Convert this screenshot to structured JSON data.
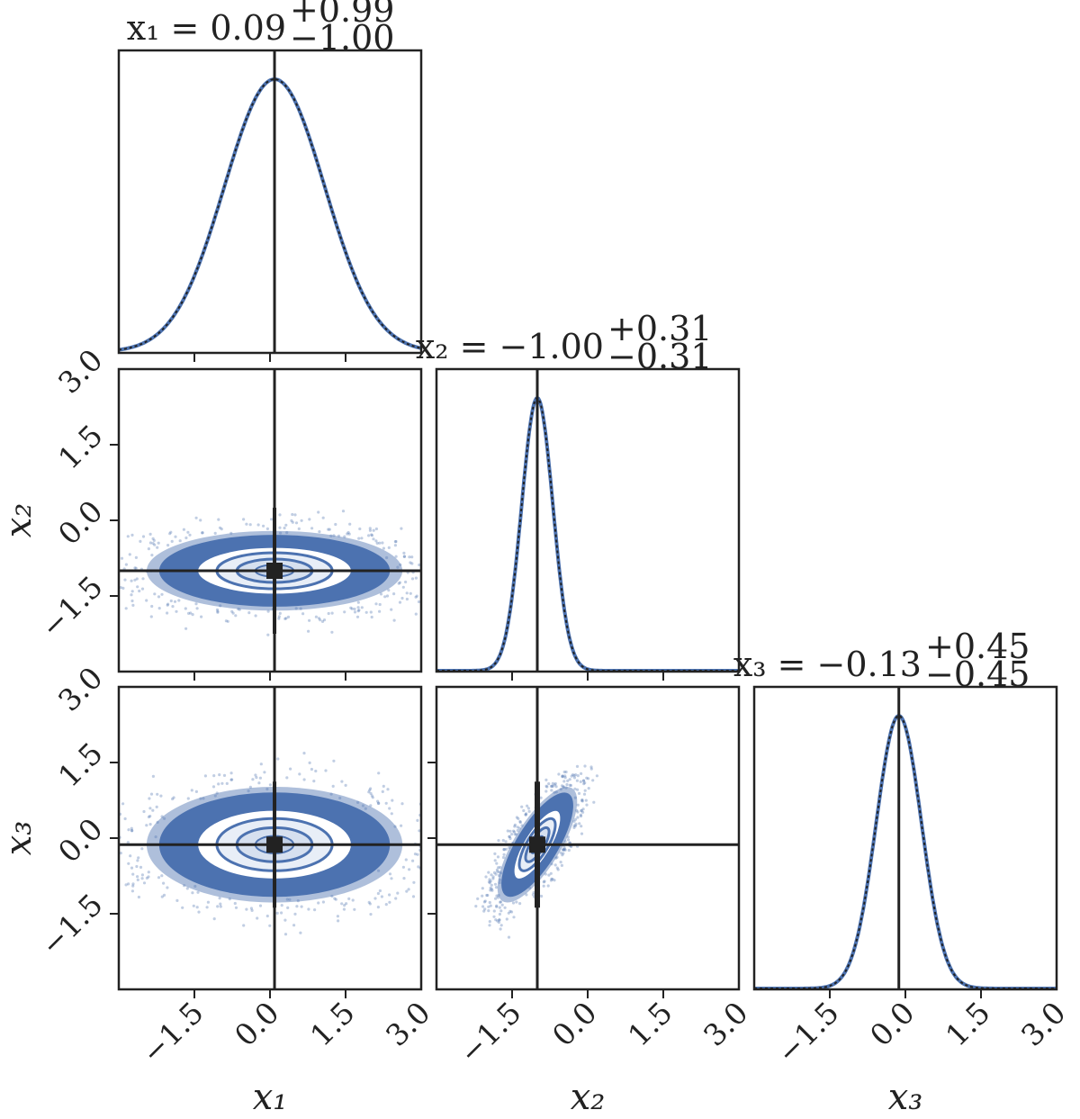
{
  "chart_data": {
    "type": "corner",
    "parameters": [
      {
        "symbol": "x",
        "sub": "1",
        "median": 0.09,
        "plus": 0.99,
        "minus": 1.0,
        "title": {
          "main": "x₁ = 0.09",
          "sup": "+0.99",
          "sub": "−1.00"
        }
      },
      {
        "symbol": "x",
        "sub": "2",
        "median": -1.0,
        "plus": 0.31,
        "minus": 0.31,
        "title": {
          "main": "x₂ = −1.00",
          "sup": "+0.31",
          "sub": "−0.31"
        }
      },
      {
        "symbol": "x",
        "sub": "3",
        "median": -0.13,
        "plus": 0.45,
        "minus": 0.45,
        "title": {
          "main": "x₃ = −0.13",
          "sup": "+0.45",
          "sub": "−0.45"
        }
      }
    ],
    "axis_labels": [
      "x₁",
      "x₂",
      "x₃"
    ],
    "axis_range": [
      -3.0,
      3.0
    ],
    "ticks": [
      -1.5,
      0.0,
      1.5,
      3.0
    ],
    "tick_labels": [
      "−1.5",
      "0.0",
      "1.5",
      "3.0"
    ],
    "truth_values": [
      0.09,
      -1.0,
      -0.13
    ],
    "correlation_x2_x3": 0.75,
    "colors": {
      "samples": "#4c72b0",
      "line": "#222222",
      "frame": "#222222"
    }
  }
}
